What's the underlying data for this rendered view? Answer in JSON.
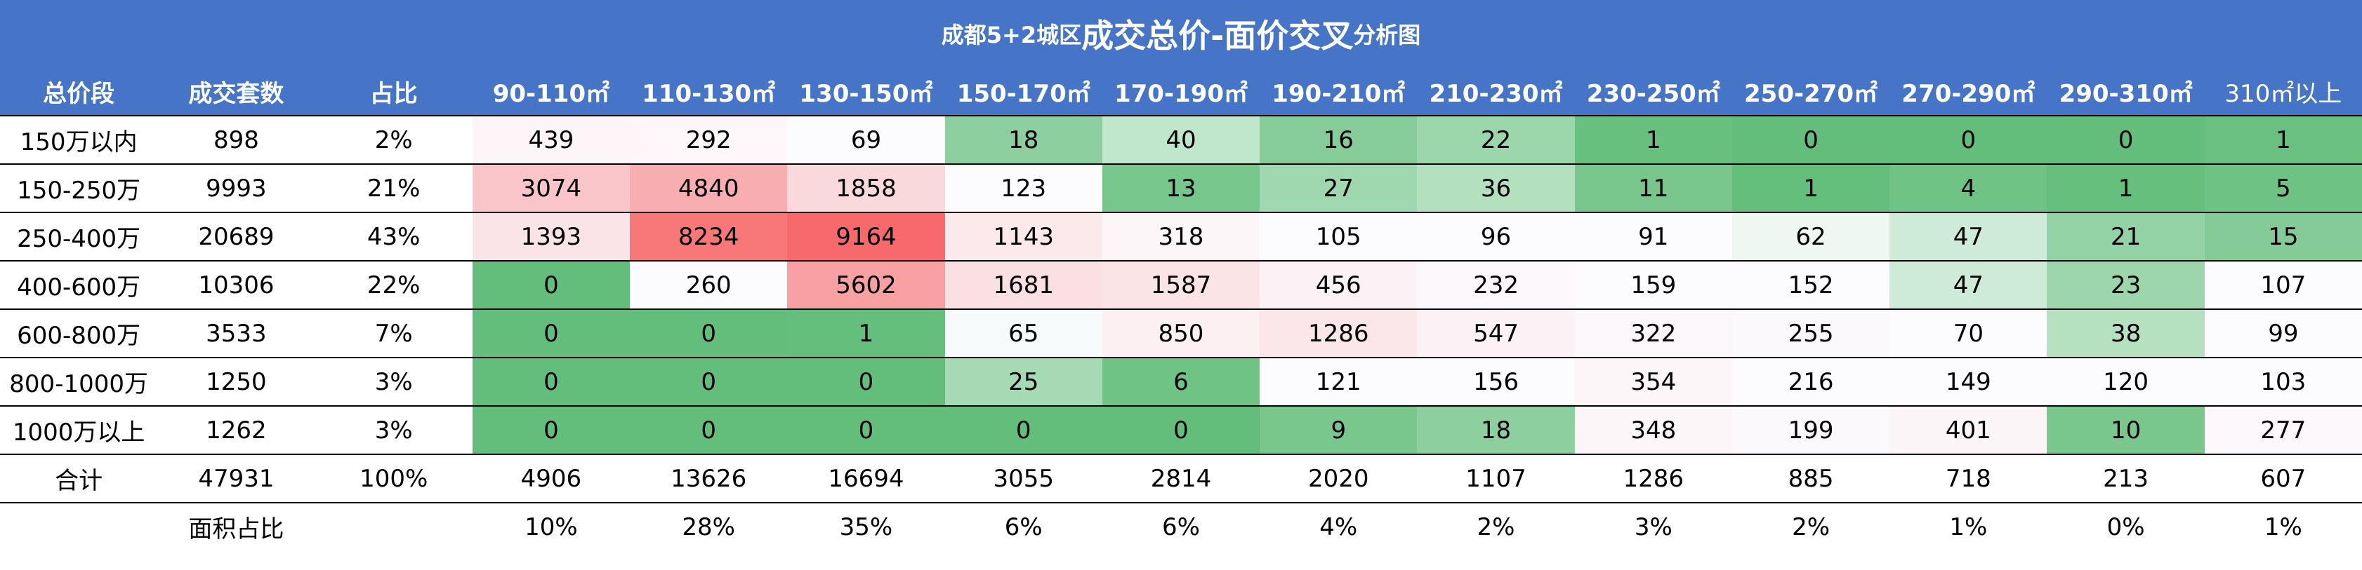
{
  "title": {
    "prefix": "成都5+2城区",
    "main": "成交总价-面价交叉",
    "suffix": "分析图"
  },
  "headers": [
    "总价段",
    "成交套数",
    "占比",
    "90-110㎡",
    "110-130㎡",
    "130-150㎡",
    "150-170㎡",
    "170-190㎡",
    "190-210㎡",
    "210-230㎡",
    "230-250㎡",
    "250-270㎡",
    "270-290㎡",
    "290-310㎡",
    "310㎡以上"
  ],
  "rows": [
    {
      "cells": [
        "150万以内",
        "898",
        "2%",
        "439",
        "292",
        "69",
        "18",
        "40",
        "16",
        "22",
        "1",
        "0",
        "0",
        "0",
        "1"
      ],
      "colors": [
        "#fdf5f7",
        "#fdf7f9",
        "#fcfcff",
        "#8dcf9e",
        "#c0e6cb",
        "#86cc98",
        "#9cd6ab",
        "#68c07f",
        "#63be7b",
        "#63be7b",
        "#63be7b",
        "#69c080"
      ]
    },
    {
      "cells": [
        "150-250万",
        "9993",
        "21%",
        "3074",
        "4840",
        "1858",
        "123",
        "13",
        "27",
        "36",
        "11",
        "1",
        "4",
        "1",
        "5"
      ],
      "colors": [
        "#f9c5c8",
        "#f8aeb1",
        "#fad9dc",
        "#fcfcff",
        "#77c68b",
        "#9fd7ae",
        "#b3e0bf",
        "#78c68c",
        "#65bf7c",
        "#6fc385",
        "#66bf7d",
        "#6ec284"
      ]
    },
    {
      "cells": [
        "250-400万",
        "20689",
        "43%",
        "1393",
        "8234",
        "9164",
        "1143",
        "318",
        "105",
        "96",
        "91",
        "62",
        "47",
        "21",
        "15"
      ],
      "colors": [
        "#fbe4e7",
        "#f8787a",
        "#f8696b",
        "#fce9ec",
        "#fcf6f9",
        "#fcfcff",
        "#fcfcff",
        "#fcfcff",
        "#eef7f2",
        "#cdebd6",
        "#93d2a4",
        "#84cb97"
      ]
    },
    {
      "cells": [
        "400-600万",
        "10306",
        "22%",
        "0",
        "260",
        "5602",
        "1681",
        "1587",
        "456",
        "232",
        "159",
        "152",
        "47",
        "23",
        "107"
      ],
      "colors": [
        "#63be7b",
        "#fcfcff",
        "#f9a0a3",
        "#fbe0e3",
        "#fbe4e6",
        "#fcf2f5",
        "#fcf8fb",
        "#fcfcff",
        "#fcfcff",
        "#cdebd6",
        "#9dd6ac",
        "#fcfcff"
      ]
    },
    {
      "cells": [
        "600-800万",
        "3533",
        "7%",
        "0",
        "0",
        "1",
        "65",
        "850",
        "1286",
        "547",
        "322",
        "255",
        "70",
        "38",
        "99"
      ],
      "colors": [
        "#63be7b",
        "#63be7b",
        "#65bf7c",
        "#f6fafb",
        "#fcf0f3",
        "#fbe6e9",
        "#fcf2f5",
        "#fcf7fa",
        "#fcf9fc",
        "#fcfcff",
        "#b5e1c1",
        "#fcfcff"
      ]
    },
    {
      "cells": [
        "800-1000万",
        "1250",
        "3%",
        "0",
        "0",
        "0",
        "25",
        "6",
        "121",
        "156",
        "354",
        "216",
        "149",
        "120",
        "103"
      ],
      "colors": [
        "#63be7b",
        "#63be7b",
        "#63be7b",
        "#a6dab4",
        "#6fc385",
        "#fcfcff",
        "#fcfbfe",
        "#fcf6f9",
        "#fcfbfe",
        "#fcfcff",
        "#fcfcff",
        "#fcfcff"
      ]
    },
    {
      "cells": [
        "1000万以上",
        "1262",
        "3%",
        "0",
        "0",
        "0",
        "0",
        "0",
        "9",
        "18",
        "348",
        "199",
        "401",
        "10",
        "277"
      ],
      "colors": [
        "#63be7b",
        "#63be7b",
        "#63be7b",
        "#63be7b",
        "#63be7b",
        "#79c78d",
        "#8dcf9e",
        "#fcf6f9",
        "#fcf9fc",
        "#fcf5f8",
        "#79c78d",
        "#fcf8fb"
      ]
    }
  ],
  "total": [
    "合计",
    "47931",
    "100%",
    "4906",
    "13626",
    "16694",
    "3055",
    "2814",
    "2020",
    "1107",
    "1286",
    "885",
    "718",
    "213",
    "607"
  ],
  "area_ratio": {
    "label": "面积占比",
    "values": [
      "10%",
      "28%",
      "35%",
      "6%",
      "6%",
      "4%",
      "2%",
      "3%",
      "2%",
      "1%",
      "0%",
      "1%"
    ]
  }
}
